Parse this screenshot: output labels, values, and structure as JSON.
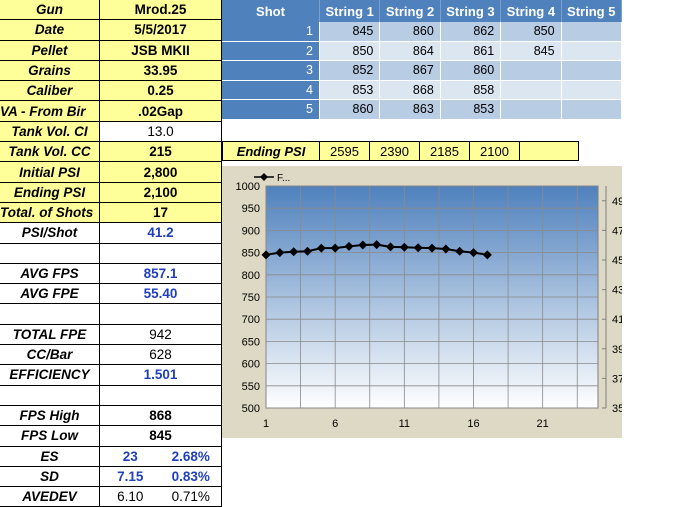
{
  "stats": [
    {
      "label": "Gun",
      "value": "Mrod.25"
    },
    {
      "label": "Date",
      "value": "5/5/2017"
    },
    {
      "label": "Pellet",
      "value": "JSB MKII"
    },
    {
      "label": "Grains",
      "value": "33.95"
    },
    {
      "label": "Caliber",
      "value": "0.25"
    },
    {
      "label": "VA - From Bir",
      "value": ".02Gap"
    },
    {
      "label": "Tank Vol. CI",
      "value": "13.0"
    },
    {
      "label": "Tank Vol. CC",
      "value": "215"
    },
    {
      "label": "Initial PSI",
      "value": "2,800"
    },
    {
      "label": "Ending PSI",
      "value": "2,100"
    },
    {
      "label": "Total. of Shots",
      "value": "17"
    },
    {
      "label": "PSI/Shot",
      "value": "41.2"
    },
    {
      "label": "AVG FPS",
      "value": "857.1"
    },
    {
      "label": "AVG FPE",
      "value": "55.40"
    },
    {
      "label": "TOTAL FPE",
      "value": "942"
    },
    {
      "label": "CC/Bar",
      "value": "628"
    },
    {
      "label": "EFFICIENCY",
      "value": "1.501"
    },
    {
      "label": "FPS High",
      "value": "868"
    },
    {
      "label": "FPS Low",
      "value": "845"
    },
    {
      "label": "ES",
      "value": "23",
      "pct": "2.68%"
    },
    {
      "label": "SD",
      "value": "7.15",
      "pct": "0.83%"
    },
    {
      "label": "AVEDEV",
      "value": "6.10",
      "pct": "0.71%"
    }
  ],
  "table": {
    "headers": [
      "Shot",
      "String 1",
      "String 2",
      "String 3",
      "String 4",
      "String 5"
    ],
    "rows": [
      [
        "1",
        "845",
        "860",
        "862",
        "850",
        ""
      ],
      [
        "2",
        "850",
        "864",
        "861",
        "845",
        ""
      ],
      [
        "3",
        "852",
        "867",
        "860",
        "",
        ""
      ],
      [
        "4",
        "853",
        "868",
        "858",
        "",
        ""
      ],
      [
        "5",
        "860",
        "863",
        "853",
        "",
        ""
      ]
    ]
  },
  "ending_psi": {
    "label": "Ending PSI",
    "values": [
      "2595",
      "2390",
      "2185",
      "2100",
      ""
    ]
  },
  "chart_data": {
    "type": "line",
    "legend": "F...",
    "x": [
      1,
      2,
      3,
      4,
      5,
      6,
      7,
      8,
      9,
      10,
      11,
      12,
      13,
      14,
      15,
      16,
      17
    ],
    "values": [
      845,
      850,
      852,
      853,
      860,
      860,
      864,
      867,
      868,
      863,
      862,
      861,
      860,
      858,
      853,
      850,
      845
    ],
    "ylim": [
      500,
      1000
    ],
    "yticks": [
      500,
      550,
      600,
      650,
      700,
      750,
      800,
      850,
      900,
      950,
      1000
    ],
    "y2lim": [
      35,
      50
    ],
    "y2ticks": [
      35,
      37,
      39,
      41,
      43,
      45,
      47,
      49
    ],
    "xlim": [
      1,
      25
    ],
    "xticks": [
      1,
      6,
      11,
      16,
      21
    ],
    "colors": {
      "plot_top": "#4f81bd",
      "plot_bottom": "#ffffff",
      "line": "#000000",
      "frame": "#ddd9c4"
    }
  }
}
